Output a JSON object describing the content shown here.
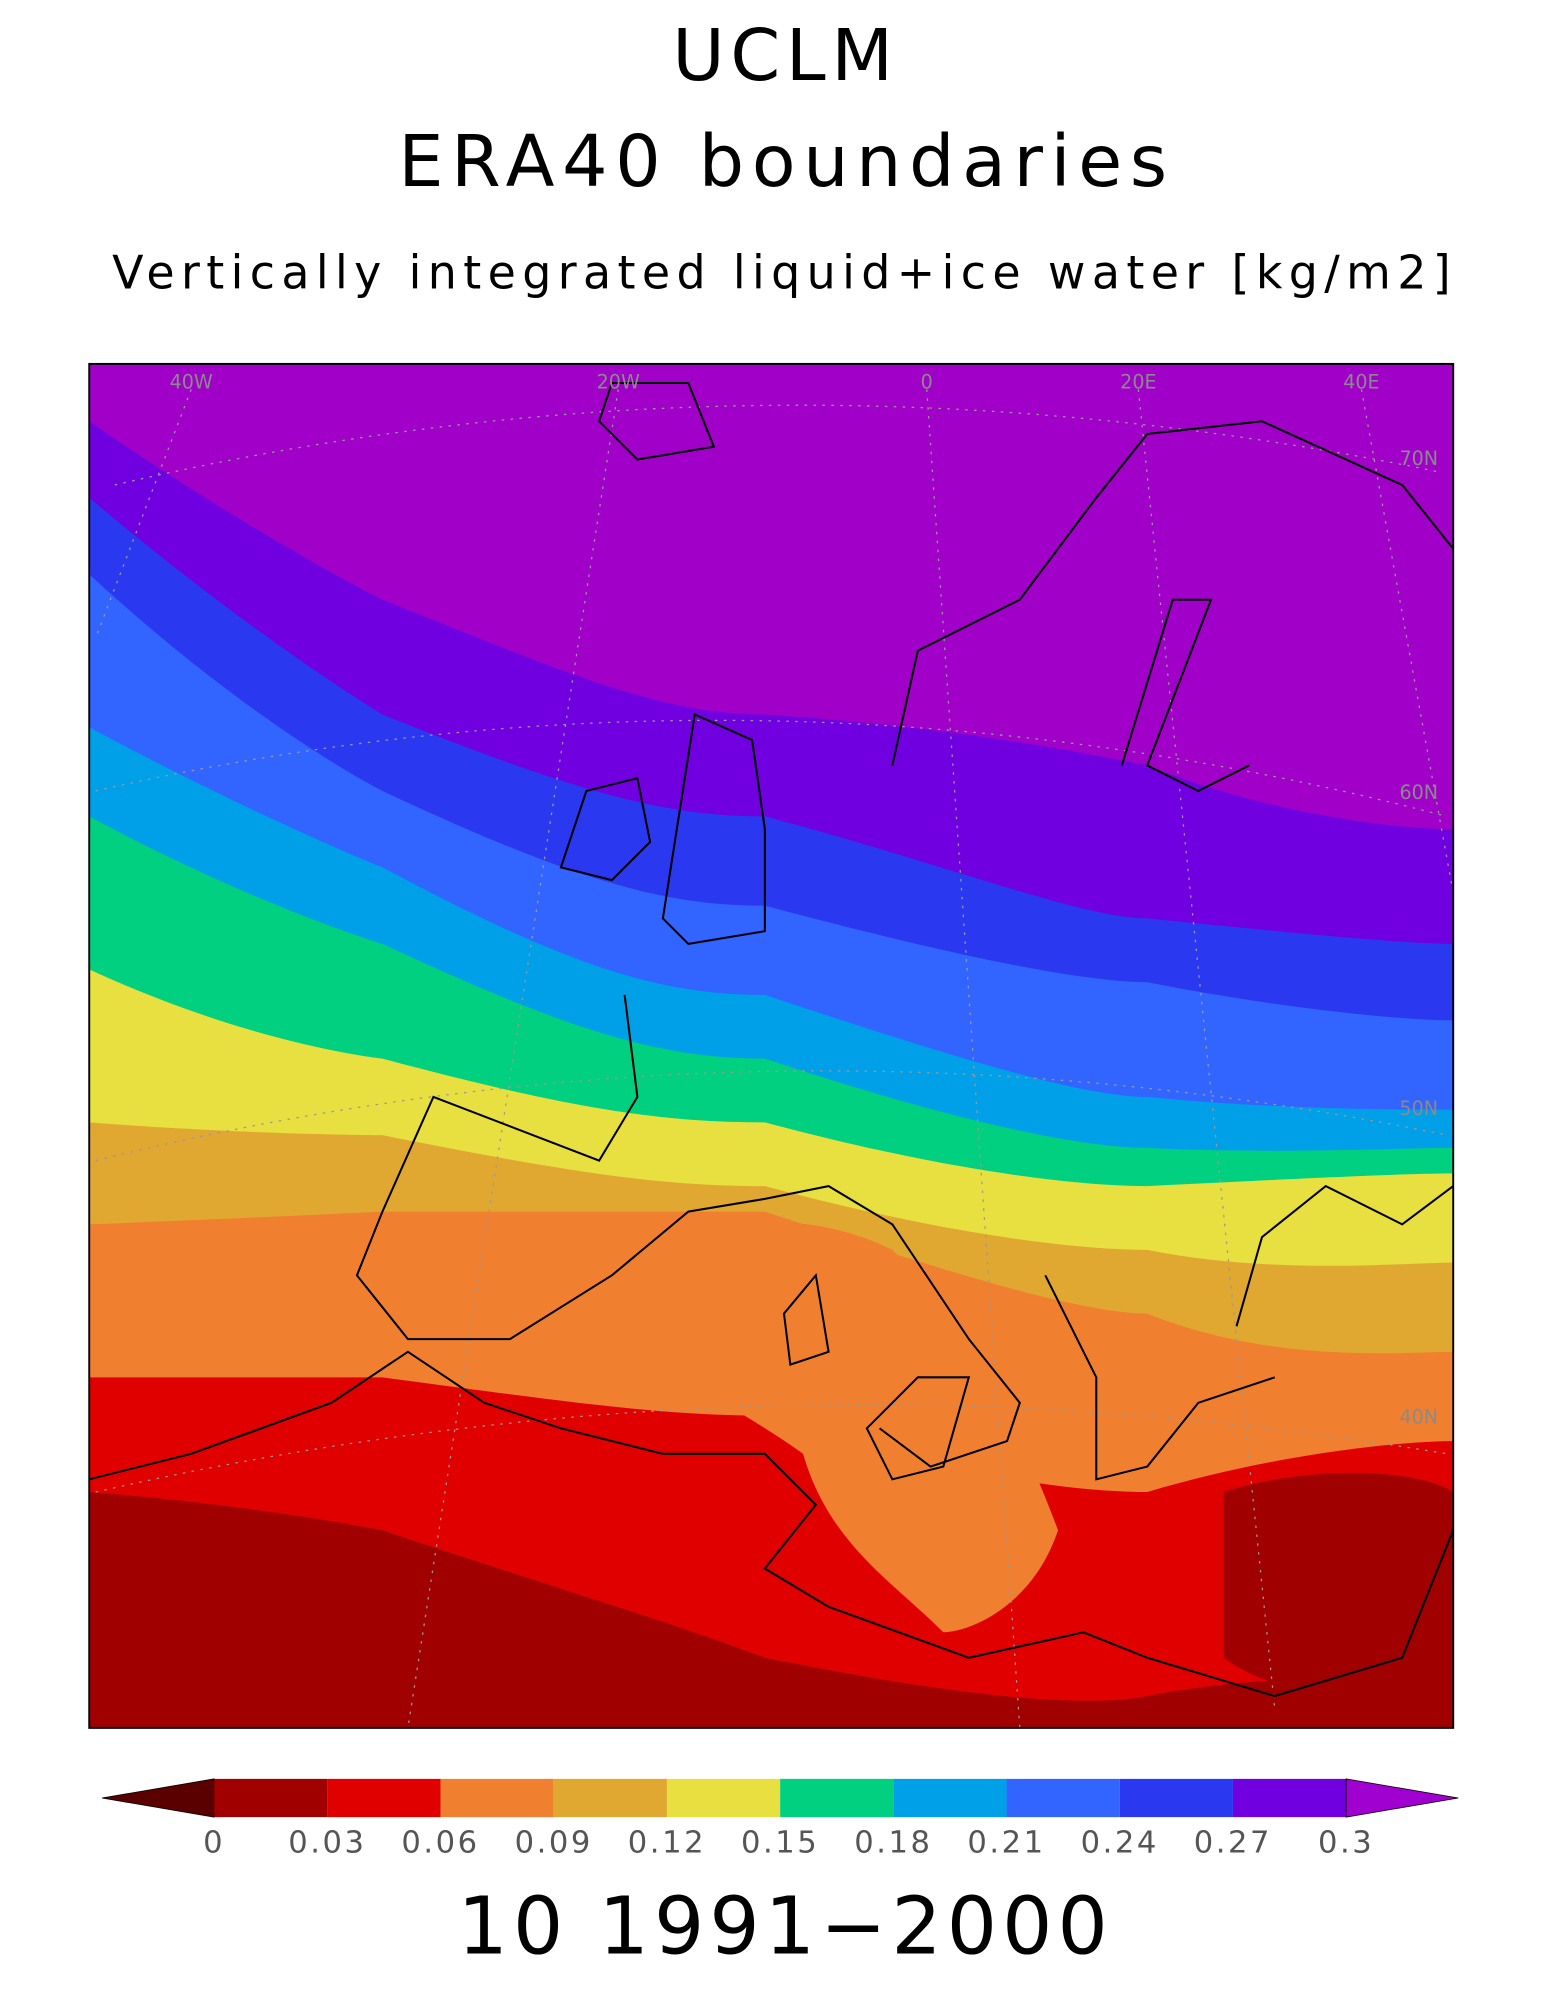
{
  "title": "UCLM",
  "subtitle": "ERA40 boundaries",
  "variable": "Vertically integrated liquid+ice water [kg/m2]",
  "map": {
    "lon_labels": [
      "40W",
      "20W",
      "0",
      "20E",
      "40E"
    ],
    "lat_labels": [
      "70N",
      "60N",
      "50N",
      "40N"
    ]
  },
  "colorbar": {
    "levels": [
      0,
      0.03,
      0.06,
      0.09,
      0.12,
      0.15,
      0.18,
      0.21,
      0.24,
      0.27,
      0.3
    ],
    "colors": [
      "#5a0000",
      "#a00000",
      "#e00000",
      "#f08030",
      "#e0a830",
      "#e8e040",
      "#00d080",
      "#00a0e8",
      "#3264ff",
      "#2a38f0",
      "#7000e0",
      "#a000d0"
    ]
  },
  "period": "10 1991−2000"
}
